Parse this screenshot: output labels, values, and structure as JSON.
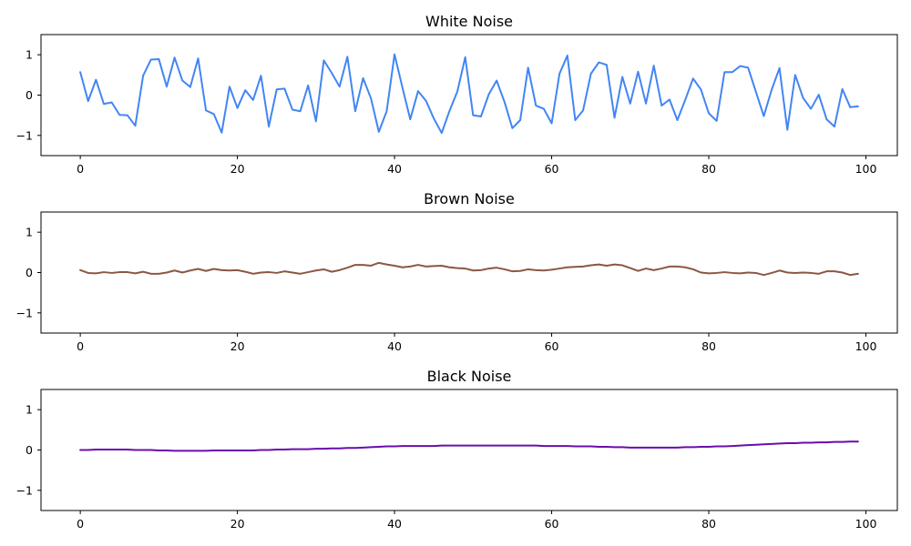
{
  "chart_data": [
    {
      "type": "line",
      "title": "White Noise",
      "xlim": [
        -5,
        104
      ],
      "ylim": [
        -1.5,
        1.5
      ],
      "xticks": [
        0,
        20,
        40,
        60,
        80,
        100
      ],
      "yticks": [
        -1,
        0,
        1
      ],
      "series": [
        {
          "color": "#4285f4",
          "x_start": 0,
          "x_step": 1,
          "values": [
            0.57,
            -0.15,
            0.38,
            -0.22,
            -0.18,
            -0.49,
            -0.5,
            -0.76,
            0.48,
            0.88,
            0.89,
            0.21,
            0.93,
            0.36,
            0.2,
            0.91,
            -0.38,
            -0.47,
            -0.93,
            0.21,
            -0.32,
            0.12,
            -0.12,
            0.48,
            -0.78,
            0.14,
            0.16,
            -0.36,
            -0.4,
            0.24,
            -0.65,
            0.86,
            0.55,
            0.21,
            0.95,
            -0.4,
            0.42,
            -0.08,
            -0.91,
            -0.4,
            1.01,
            0.19,
            -0.6,
            0.1,
            -0.14,
            -0.58,
            -0.94,
            -0.39,
            0.09,
            0.94,
            -0.5,
            -0.53,
            0.02,
            0.36,
            -0.17,
            -0.82,
            -0.62,
            0.68,
            -0.26,
            -0.34,
            -0.7,
            0.53,
            0.98,
            -0.62,
            -0.38,
            0.53,
            0.81,
            0.75,
            -0.56,
            0.45,
            -0.21,
            0.58,
            -0.21,
            0.73,
            -0.26,
            -0.11,
            -0.62,
            -0.12,
            0.41,
            0.14,
            -0.45,
            -0.64,
            0.57,
            0.57,
            0.72,
            0.68,
            0.08,
            -0.52,
            0.13,
            0.67,
            -0.86,
            0.5,
            -0.07,
            -0.34,
            0.01,
            -0.6,
            -0.78,
            0.15,
            -0.3,
            -0.28
          ]
        }
      ]
    },
    {
      "type": "line",
      "title": "Brown Noise",
      "xlim": [
        -5,
        104
      ],
      "ylim": [
        -1.5,
        1.5
      ],
      "xticks": [
        0,
        20,
        40,
        60,
        80,
        100
      ],
      "yticks": [
        -1,
        0,
        1
      ],
      "series": [
        {
          "color": "#8b5744",
          "x_start": 0,
          "x_step": 1,
          "values": [
            0.06,
            -0.01,
            -0.02,
            0.01,
            -0.01,
            0.01,
            0.01,
            -0.02,
            0.02,
            -0.03,
            -0.03,
            0.0,
            0.05,
            0.0,
            0.05,
            0.09,
            0.04,
            0.09,
            0.06,
            0.05,
            0.06,
            0.02,
            -0.03,
            0.0,
            0.01,
            -0.01,
            0.03,
            0.0,
            -0.03,
            0.01,
            0.05,
            0.08,
            0.02,
            0.06,
            0.12,
            0.19,
            0.19,
            0.17,
            0.24,
            0.2,
            0.17,
            0.13,
            0.15,
            0.19,
            0.15,
            0.16,
            0.17,
            0.13,
            0.11,
            0.1,
            0.05,
            0.06,
            0.1,
            0.12,
            0.08,
            0.03,
            0.04,
            0.08,
            0.06,
            0.05,
            0.07,
            0.1,
            0.13,
            0.14,
            0.15,
            0.18,
            0.2,
            0.17,
            0.2,
            0.18,
            0.11,
            0.04,
            0.1,
            0.06,
            0.1,
            0.15,
            0.15,
            0.13,
            0.08,
            0.0,
            -0.02,
            -0.01,
            0.01,
            -0.01,
            -0.02,
            0.0,
            -0.01,
            -0.06,
            -0.01,
            0.05,
            0.0,
            -0.01,
            0.0,
            -0.01,
            -0.03,
            0.03,
            0.03,
            0.0,
            -0.06,
            -0.03
          ]
        }
      ]
    },
    {
      "type": "line",
      "title": "Black Noise",
      "xlim": [
        -5,
        104
      ],
      "ylim": [
        -1.5,
        1.5
      ],
      "xticks": [
        0,
        20,
        40,
        60,
        80,
        100
      ],
      "yticks": [
        -1,
        0,
        1
      ],
      "series": [
        {
          "color": "#6a0dad",
          "x_start": 0,
          "x_step": 1,
          "values": [
            0.0,
            0.0,
            0.01,
            0.01,
            0.01,
            0.01,
            0.01,
            0.0,
            0.0,
            0.0,
            -0.01,
            -0.01,
            -0.02,
            -0.02,
            -0.02,
            -0.02,
            -0.02,
            -0.01,
            -0.01,
            -0.01,
            -0.01,
            -0.01,
            -0.01,
            0.0,
            0.0,
            0.01,
            0.01,
            0.02,
            0.02,
            0.02,
            0.03,
            0.03,
            0.04,
            0.04,
            0.05,
            0.05,
            0.06,
            0.07,
            0.08,
            0.09,
            0.09,
            0.1,
            0.1,
            0.1,
            0.1,
            0.1,
            0.11,
            0.11,
            0.11,
            0.11,
            0.11,
            0.11,
            0.11,
            0.11,
            0.11,
            0.11,
            0.11,
            0.11,
            0.11,
            0.1,
            0.1,
            0.1,
            0.1,
            0.09,
            0.09,
            0.09,
            0.08,
            0.08,
            0.07,
            0.07,
            0.06,
            0.06,
            0.06,
            0.06,
            0.06,
            0.06,
            0.06,
            0.07,
            0.07,
            0.08,
            0.08,
            0.09,
            0.09,
            0.1,
            0.11,
            0.12,
            0.13,
            0.14,
            0.15,
            0.16,
            0.17,
            0.17,
            0.18,
            0.18,
            0.19,
            0.19,
            0.2,
            0.2,
            0.21,
            0.21
          ]
        }
      ]
    }
  ]
}
